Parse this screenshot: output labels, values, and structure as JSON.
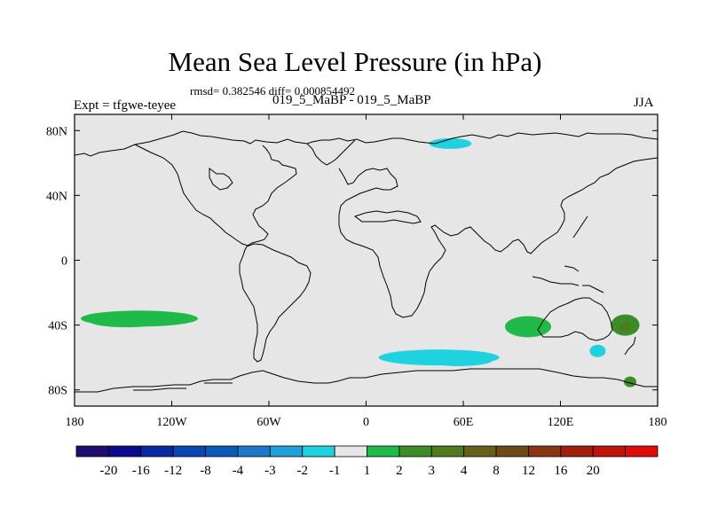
{
  "chart_data": {
    "type": "heatmap",
    "title": "Mean Sea Level Pressure (in hPa)",
    "stats": "rmsd= 0.382546 diff= 0.000854492",
    "subtitle": "019_5_MaBP - 019_5_MaBP",
    "experiment": "Expt = tfgwe-teyee",
    "season": "JJA",
    "xlim": [
      -180,
      180
    ],
    "ylim": [
      -90,
      90
    ],
    "x_ticks": [
      {
        "value": -180,
        "label": "180"
      },
      {
        "value": -120,
        "label": "120W"
      },
      {
        "value": -60,
        "label": "60W"
      },
      {
        "value": 0,
        "label": "0"
      },
      {
        "value": 60,
        "label": "60E"
      },
      {
        "value": 120,
        "label": "120E"
      },
      {
        "value": 180,
        "label": "180"
      }
    ],
    "y_ticks": [
      {
        "value": 80,
        "label": "80N"
      },
      {
        "value": 40,
        "label": "40N"
      },
      {
        "value": 0,
        "label": "0"
      },
      {
        "value": -40,
        "label": "40S"
      },
      {
        "value": -80,
        "label": "80S"
      }
    ],
    "colorbar": {
      "colors": [
        "#1e0c6e",
        "#0a0a8c",
        "#0c28a0",
        "#0c46b4",
        "#0a5ab8",
        "#1c78c8",
        "#1ea0d8",
        "#1ed2e0",
        "#e6e6e6",
        "#1fba4a",
        "#3c8c28",
        "#507a1e",
        "#66601c",
        "#6e4a18",
        "#8a3614",
        "#a0200c",
        "#c0140a",
        "#e00c0a"
      ],
      "labels": [
        "-20",
        "-16",
        "-12",
        "-8",
        "-4",
        "-3",
        "-2",
        "-1",
        "1",
        "2",
        "3",
        "4",
        "8",
        "12",
        "16",
        "20"
      ]
    },
    "anomalies": [
      {
        "name": "South Pacific positive",
        "lon": -140,
        "lat": -36,
        "value": 1.5
      },
      {
        "name": "South Atlantic negative",
        "lon": 45,
        "lat": -60,
        "value": -1.5
      },
      {
        "name": "Indian Ocean positive",
        "lon": 100,
        "lat": -41,
        "value": 1.5
      },
      {
        "name": "Barents Sea negative",
        "lon": 52,
        "lat": 72,
        "value": -1.5
      },
      {
        "name": "Tasman Sea positive",
        "lon": 160,
        "lat": -40,
        "value": 2.5
      },
      {
        "name": "New Zealand core",
        "lon": 160,
        "lat": -41,
        "value": 3.5
      },
      {
        "name": "South of Australia negative",
        "lon": 143,
        "lat": -56,
        "value": -1.5
      },
      {
        "name": "Ross Sea positive",
        "lon": 163,
        "lat": -75,
        "value": 2.5
      }
    ]
  }
}
